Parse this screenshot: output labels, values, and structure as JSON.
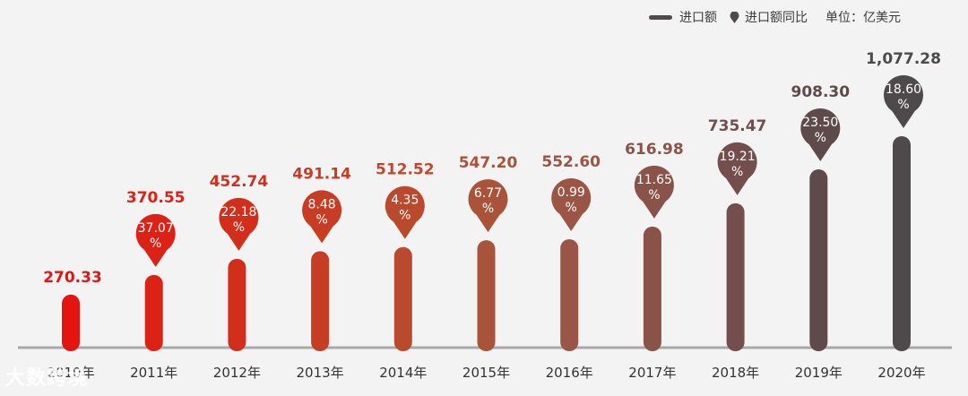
{
  "legend": {
    "bar_label": "进口额",
    "pin_label": "进口额同比",
    "unit": "单位：亿美元"
  },
  "watermark": "大数跨境",
  "chart_data": {
    "type": "bar",
    "title": "",
    "xlabel": "",
    "ylabel": "亿美元",
    "categories": [
      "2010年",
      "2011年",
      "2012年",
      "2013年",
      "2014年",
      "2015年",
      "2016年",
      "2017年",
      "2018年",
      "2019年",
      "2020年"
    ],
    "series": [
      {
        "name": "进口额",
        "values": [
          270.33,
          370.55,
          452.74,
          491.14,
          512.52,
          547.2,
          552.6,
          616.98,
          735.47,
          908.3,
          1077.28
        ],
        "labels": [
          "270.33",
          "370.55",
          "452.74",
          "491.14",
          "512.52",
          "547.20",
          "552.60",
          "616.98",
          "735.47",
          "908.30",
          "1,077.28"
        ]
      },
      {
        "name": "进口额同比",
        "unit": "%",
        "values": [
          null,
          37.07,
          22.18,
          8.48,
          4.35,
          6.77,
          0.99,
          11.65,
          19.21,
          23.5,
          18.6
        ],
        "labels": [
          null,
          "37.07",
          "22.18",
          "8.48",
          "4.35",
          "6.77",
          "0.99",
          "11.65",
          "19.21",
          "23.50",
          "18.60"
        ]
      }
    ],
    "colors": [
      "#e31510",
      "#dc2116",
      "#d22e1c",
      "#c63d24",
      "#b94a2e",
      "#a9533a",
      "#9a5544",
      "#8a5349",
      "#744e4c",
      "#5f4a4b",
      "#4e4a4b"
    ]
  }
}
